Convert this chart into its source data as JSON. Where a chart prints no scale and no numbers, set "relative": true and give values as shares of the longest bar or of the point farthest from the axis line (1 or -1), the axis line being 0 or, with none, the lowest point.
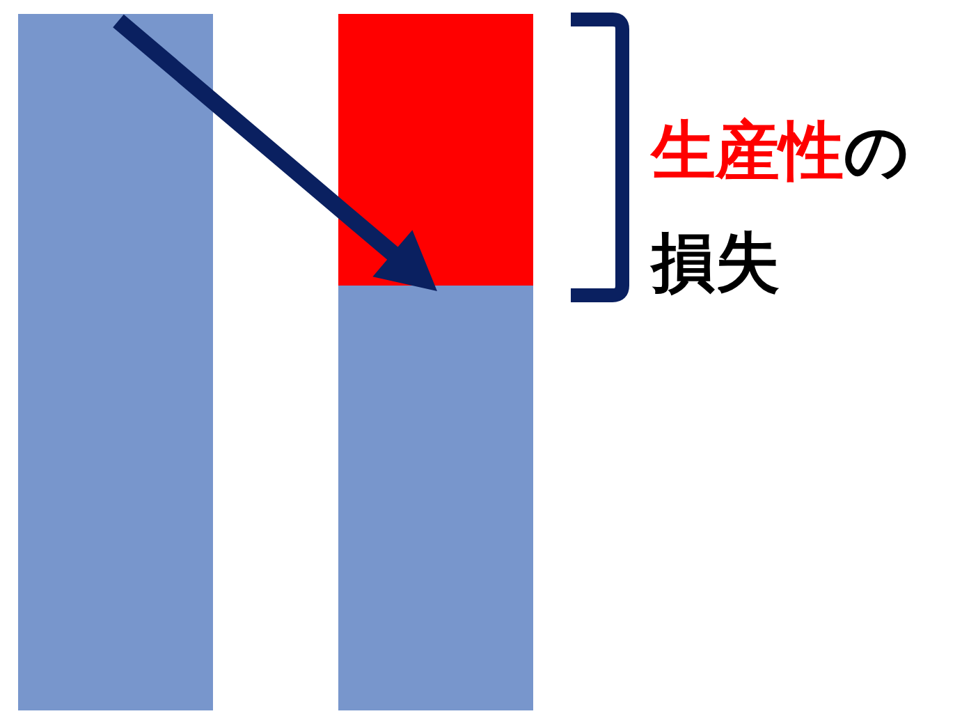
{
  "chart_data": {
    "type": "bar",
    "stacked": true,
    "relative": true,
    "categories": [
      null,
      null
    ],
    "series": [
      {
        "color": "#7896cc",
        "values": [
          1,
          0.61
        ]
      },
      {
        "color": "#ff0000",
        "values": [
          0,
          0.39
        ]
      }
    ],
    "annotations": [
      "生産性",
      "の損失"
    ]
  }
}
